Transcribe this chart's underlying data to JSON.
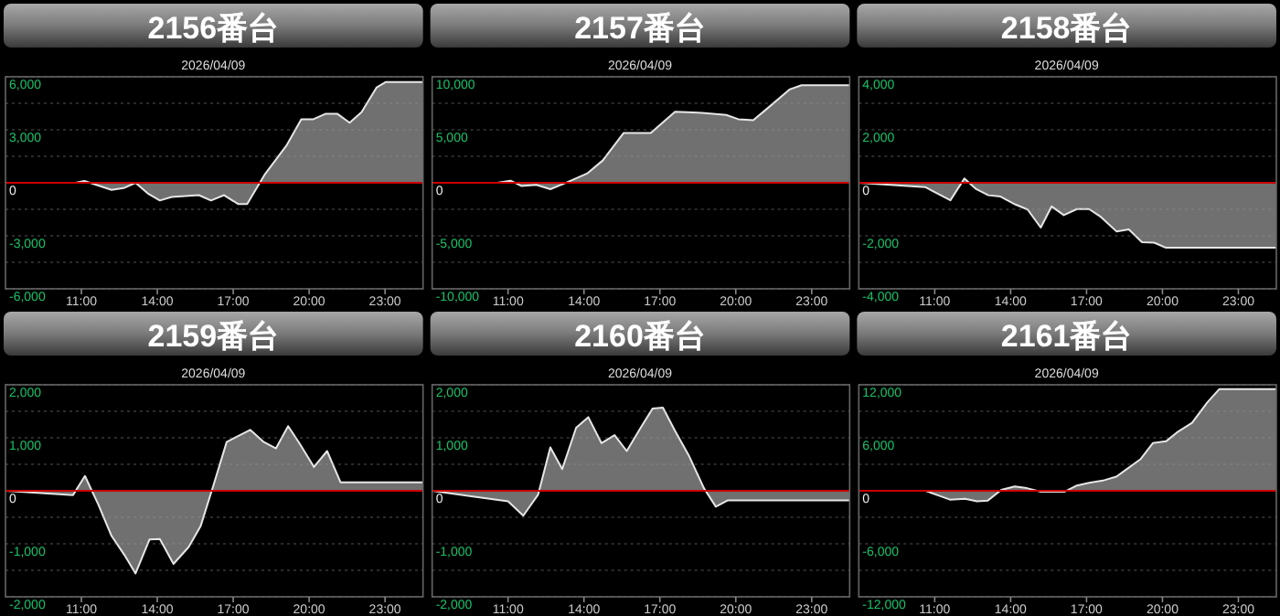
{
  "chart_data": [
    {
      "type": "area",
      "title": "2156番台",
      "subtitle": "2026/04/09",
      "color": "#707070",
      "grid": "y",
      "xlim": [
        8,
        24.5
      ],
      "xticks": [
        {
          "value": 11,
          "label": "11:00"
        },
        {
          "value": 14,
          "label": "14:00"
        },
        {
          "value": 17,
          "label": "17:00"
        },
        {
          "value": 20,
          "label": "20:00"
        },
        {
          "value": 23,
          "label": "23:00"
        }
      ],
      "ylim": [
        -6000,
        6000
      ],
      "yticks": [
        {
          "value": 6000,
          "label": "6,000"
        },
        {
          "value": 4500,
          "label": null
        },
        {
          "value": 3000,
          "label": "3,000"
        },
        {
          "value": 1500,
          "label": null
        },
        {
          "value": 0,
          "label": "0"
        },
        {
          "value": -1500,
          "label": null
        },
        {
          "value": -3000,
          "label": "-3,000"
        },
        {
          "value": -4500,
          "label": null
        },
        {
          "value": -6000,
          "label": "-6,000"
        }
      ],
      "ref_lines": [
        {
          "axis": "y",
          "value": 0,
          "color": "#cc0000"
        }
      ],
      "x": [
        8,
        10.76,
        11.12,
        12.19,
        12.67,
        13.14,
        13.62,
        14.1,
        14.57,
        15.64,
        16.12,
        16.64,
        17.19,
        17.55,
        18.26,
        19.1,
        19.69,
        20.17,
        20.64,
        21.12,
        21.6,
        22.07,
        22.67,
        23.02,
        24.5
      ],
      "values": [
        0,
        0,
        100,
        -400,
        -300,
        0,
        -600,
        -1000,
        -800,
        -700,
        -1000,
        -700,
        -1200,
        -1200,
        500,
        2100,
        3600,
        3600,
        3900,
        3900,
        3400,
        4000,
        5400,
        5700,
        5700
      ]
    },
    {
      "type": "area",
      "title": "2157番台",
      "subtitle": "2026/04/09",
      "color": "#707070",
      "grid": "y",
      "xlim": [
        8,
        24.5
      ],
      "xticks": [
        {
          "value": 11,
          "label": "11:00"
        },
        {
          "value": 14,
          "label": "14:00"
        },
        {
          "value": 17,
          "label": "17:00"
        },
        {
          "value": 20,
          "label": "20:00"
        },
        {
          "value": 23,
          "label": "23:00"
        }
      ],
      "ylim": [
        -10000,
        10000
      ],
      "yticks": [
        {
          "value": 10000,
          "label": "10,000"
        },
        {
          "value": 7500,
          "label": null
        },
        {
          "value": 5000,
          "label": "5,000"
        },
        {
          "value": 2500,
          "label": null
        },
        {
          "value": 0,
          "label": "0"
        },
        {
          "value": -2500,
          "label": null
        },
        {
          "value": -5000,
          "label": "-5,000"
        },
        {
          "value": -7500,
          "label": null
        },
        {
          "value": -10000,
          "label": "-10,000"
        }
      ],
      "ref_lines": [
        {
          "axis": "y",
          "value": 0,
          "color": "#cc0000"
        }
      ],
      "x": [
        8,
        10.57,
        11.1,
        11.52,
        12.12,
        12.67,
        13.19,
        14.14,
        14.74,
        15.57,
        16.64,
        17.6,
        18.67,
        19.62,
        20.1,
        20.69,
        21.29,
        22.12,
        22.6,
        24.5
      ],
      "values": [
        0,
        0,
        200,
        -300,
        -200,
        -600,
        -100,
        900,
        2100,
        4700,
        4700,
        6700,
        6600,
        6400,
        6000,
        5900,
        7100,
        8800,
        9200,
        9200
      ]
    },
    {
      "type": "area",
      "title": "2158番台",
      "subtitle": "2026/04/09",
      "color": "#707070",
      "grid": "y",
      "xlim": [
        8,
        24.5
      ],
      "xticks": [
        {
          "value": 11,
          "label": "11:00"
        },
        {
          "value": 14,
          "label": "14:00"
        },
        {
          "value": 17,
          "label": "17:00"
        },
        {
          "value": 20,
          "label": "20:00"
        },
        {
          "value": 23,
          "label": "23:00"
        }
      ],
      "ylim": [
        -4000,
        4000
      ],
      "yticks": [
        {
          "value": 4000,
          "label": "4,000"
        },
        {
          "value": 3000,
          "label": null
        },
        {
          "value": 2000,
          "label": "2,000"
        },
        {
          "value": 1000,
          "label": null
        },
        {
          "value": 0,
          "label": "0"
        },
        {
          "value": -1000,
          "label": null
        },
        {
          "value": -2000,
          "label": "-2,000"
        },
        {
          "value": -3000,
          "label": null
        },
        {
          "value": -4000,
          "label": "-4,000"
        }
      ],
      "ref_lines": [
        {
          "axis": "y",
          "value": 0,
          "color": "#cc0000"
        }
      ],
      "x": [
        8,
        10.62,
        11.62,
        12.17,
        12.64,
        13.12,
        13.6,
        14.19,
        14.67,
        15.19,
        15.62,
        16.1,
        16.62,
        17.1,
        17.57,
        18.19,
        18.67,
        19.19,
        19.67,
        20.14,
        24.5
      ],
      "values": [
        0,
        -160,
        -660,
        160,
        -240,
        -470,
        -520,
        -820,
        -1010,
        -1690,
        -890,
        -1220,
        -990,
        -990,
        -1290,
        -1840,
        -1760,
        -2240,
        -2260,
        -2450,
        -2450
      ]
    },
    {
      "type": "area",
      "title": "2159番台",
      "subtitle": "2026/04/09",
      "color": "#707070",
      "grid": "y",
      "xlim": [
        8,
        24.5
      ],
      "xticks": [
        {
          "value": 11,
          "label": "11:00"
        },
        {
          "value": 14,
          "label": "14:00"
        },
        {
          "value": 17,
          "label": "17:00"
        },
        {
          "value": 20,
          "label": "20:00"
        },
        {
          "value": 23,
          "label": "23:00"
        }
      ],
      "ylim": [
        -2000,
        2000
      ],
      "yticks": [
        {
          "value": 2000,
          "label": "2,000"
        },
        {
          "value": 1500,
          "label": null
        },
        {
          "value": 1000,
          "label": "1,000"
        },
        {
          "value": 500,
          "label": null
        },
        0,
        {
          "value": -500,
          "label": null
        },
        {
          "value": -1000,
          "label": "-1,000"
        },
        {
          "value": -1500,
          "label": null
        },
        {
          "value": -2000,
          "label": "-2,000"
        }
      ],
      "ref_lines": [
        {
          "axis": "y",
          "value": 0,
          "color": "#cc0000"
        }
      ],
      "x": [
        8,
        10.67,
        11.14,
        11.67,
        12.19,
        12.74,
        13.14,
        13.69,
        14.1,
        14.64,
        15.24,
        15.71,
        16.19,
        16.74,
        17.67,
        18.21,
        18.69,
        19.17,
        19.64,
        20.19,
        20.71,
        21.24,
        24.5
      ],
      "values": [
        0,
        -80,
        280,
        -260,
        -850,
        -1240,
        -1560,
        -920,
        -910,
        -1380,
        -1060,
        -670,
        60,
        920,
        1150,
        920,
        800,
        1220,
        880,
        450,
        750,
        160,
        160
      ]
    },
    {
      "type": "area",
      "title": "2160番台",
      "subtitle": "2026/04/09",
      "color": "#707070",
      "grid": "y",
      "xlim": [
        8,
        24.5
      ],
      "xticks": [
        {
          "value": 11,
          "label": "11:00"
        },
        {
          "value": 14,
          "label": "14:00"
        },
        {
          "value": 17,
          "label": "17:00"
        },
        {
          "value": 20,
          "label": "20:00"
        },
        {
          "value": 23,
          "label": "23:00"
        }
      ],
      "ylim": [
        -2000,
        2000
      ],
      "yticks": [
        {
          "value": 2000,
          "label": "2,000"
        },
        {
          "value": 1500,
          "label": null
        },
        {
          "value": 1000,
          "label": "1,000"
        },
        {
          "value": 500,
          "label": null
        },
        0,
        {
          "value": -500,
          "label": null
        },
        {
          "value": -1000,
          "label": "-1,000"
        },
        {
          "value": -1500,
          "label": null
        },
        {
          "value": -2000,
          "label": "-2,000"
        }
      ],
      "ref_lines": [
        {
          "axis": "y",
          "value": 0,
          "color": "#cc0000"
        }
      ],
      "x": [
        8,
        11,
        11.6,
        12.19,
        12.67,
        13.14,
        13.69,
        14.17,
        14.69,
        15.21,
        15.69,
        16.24,
        16.71,
        17.12,
        17.6,
        18.14,
        18.74,
        19.21,
        19.69,
        24.5
      ],
      "values": [
        0,
        -200,
        -470,
        -70,
        820,
        410,
        1190,
        1390,
        900,
        1050,
        750,
        1190,
        1550,
        1570,
        1130,
        670,
        50,
        -300,
        -180,
        -180
      ]
    },
    {
      "type": "area",
      "title": "2161番台",
      "subtitle": "2026/04/09",
      "color": "#707070",
      "grid": "y",
      "xlim": [
        8,
        24.5
      ],
      "xticks": [
        {
          "value": 11,
          "label": "11:00"
        },
        {
          "value": 14,
          "label": "14:00"
        },
        {
          "value": 17,
          "label": "17:00"
        },
        {
          "value": 20,
          "label": "20:00"
        },
        {
          "value": 23,
          "label": "23:00"
        }
      ],
      "ylim": [
        -12000,
        12000
      ],
      "yticks": [
        {
          "value": 12000,
          "label": "12,000"
        },
        {
          "value": 9000,
          "label": null
        },
        {
          "value": 6000,
          "label": "6,000"
        },
        {
          "value": 3000,
          "label": null
        },
        {
          "value": 0,
          "label": "0"
        },
        {
          "value": -3000,
          "label": null
        },
        {
          "value": -6000,
          "label": "-6,000"
        },
        {
          "value": -9000,
          "label": null
        },
        {
          "value": -12000,
          "label": "-12,000"
        }
      ],
      "ref_lines": [
        {
          "axis": "y",
          "value": 0,
          "color": "#cc0000"
        }
      ],
      "x": [
        8,
        10.64,
        11.12,
        11.6,
        12.2,
        12.67,
        13.1,
        13.63,
        14.16,
        14.64,
        15.19,
        16.14,
        16.62,
        17.1,
        17.7,
        18.18,
        18.66,
        19.14,
        19.62,
        20.14,
        20.57,
        21.17,
        21.77,
        22.24,
        24.5
      ],
      "values": [
        0,
        0,
        -500,
        -1000,
        -900,
        -1200,
        -1100,
        100,
        500,
        300,
        -100,
        -100,
        600,
        900,
        1200,
        1600,
        2600,
        3600,
        5400,
        5600,
        6600,
        7700,
        10000,
        11500,
        11500
      ]
    }
  ]
}
